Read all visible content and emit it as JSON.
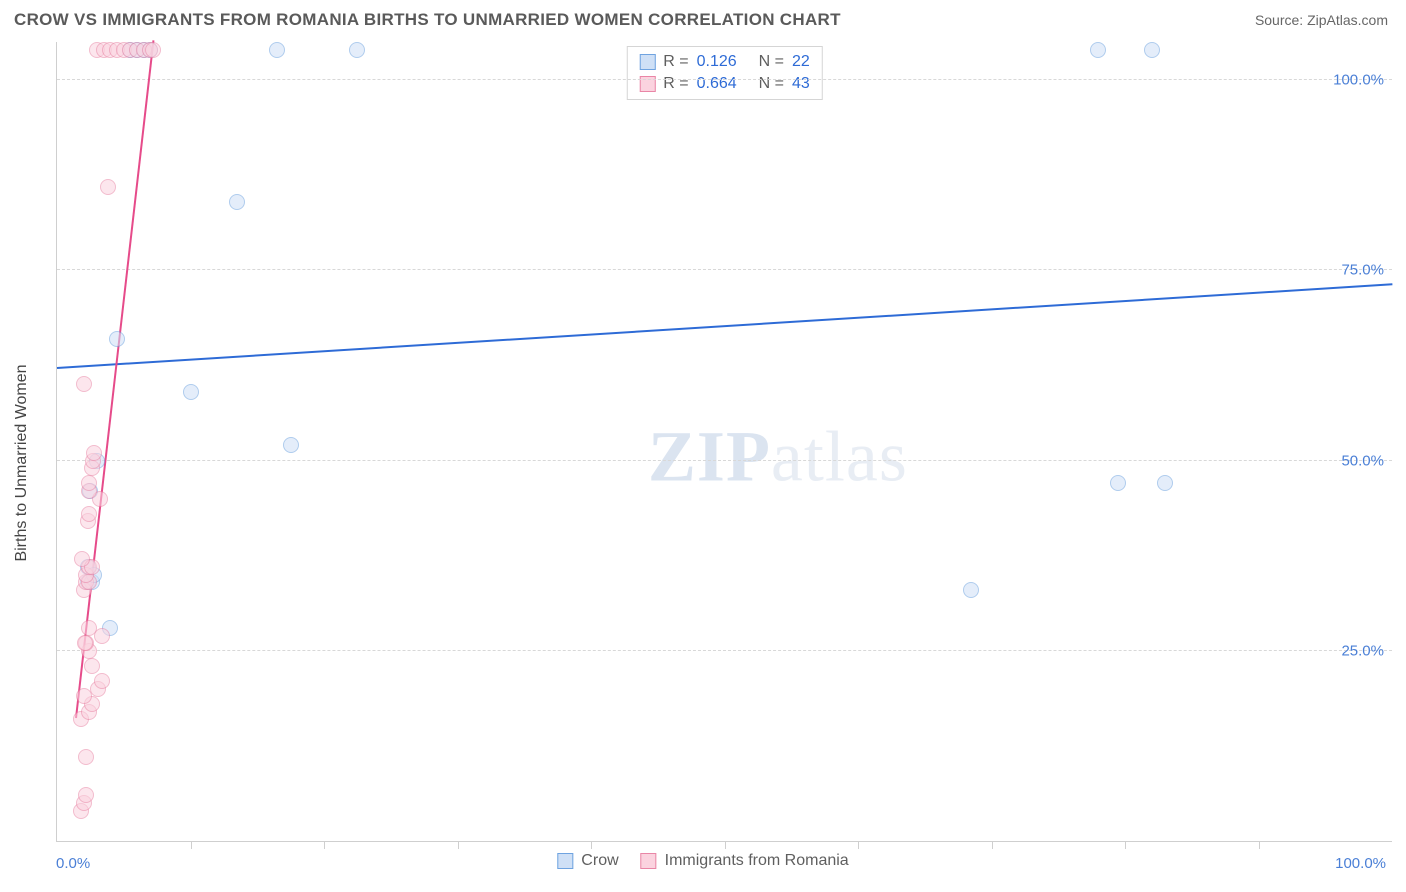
{
  "header": {
    "title": "CROW VS IMMIGRANTS FROM ROMANIA BIRTHS TO UNMARRIED WOMEN CORRELATION CHART",
    "source_prefix": "Source: ",
    "source_name": "ZipAtlas.com"
  },
  "watermark": {
    "left": "ZIP",
    "right": "atlas"
  },
  "chart": {
    "type": "scatter",
    "background_color": "#ffffff",
    "grid_color": "#d8d8d8",
    "axis_color": "#cfcfcf",
    "text_color": "#5a5a5a",
    "tick_label_color": "#4a7fd6",
    "axis_title_color": "#444444",
    "xlim": [
      0,
      100
    ],
    "ylim": [
      0,
      105
    ],
    "y_ticks": [
      25,
      50,
      75,
      100
    ],
    "y_tick_labels": [
      "25.0%",
      "50.0%",
      "75.0%",
      "100.0%"
    ],
    "x_ticks": [
      0,
      10,
      20,
      30,
      40,
      50,
      60,
      70,
      80,
      90,
      100
    ],
    "x_axis_label_left": "0.0%",
    "x_axis_label_right": "100.0%",
    "y_axis_title": "Births to Unmarried Women",
    "marker_radius": 8,
    "marker_border_width": 1.5,
    "series": [
      {
        "name": "Crow",
        "fill": "#cfe0f6",
        "stroke": "#6fa3e0",
        "fill_opacity": 0.55,
        "trend": {
          "x1": 0,
          "y1": 62,
          "x2": 100,
          "y2": 73,
          "color": "#2e6bd6",
          "width": 2
        },
        "R": "0.126",
        "N": "22",
        "points": [
          [
            2.3,
            34
          ],
          [
            2.3,
            36
          ],
          [
            2.5,
            46
          ],
          [
            3.0,
            50
          ],
          [
            4.5,
            66
          ],
          [
            5.5,
            104
          ],
          [
            6.0,
            104
          ],
          [
            6.5,
            104
          ],
          [
            7.0,
            104
          ],
          [
            4.0,
            28
          ],
          [
            10.0,
            59
          ],
          [
            13.5,
            84
          ],
          [
            16.5,
            104
          ],
          [
            17.5,
            52
          ],
          [
            22.5,
            104
          ],
          [
            68.5,
            33
          ],
          [
            78.0,
            104
          ],
          [
            79.5,
            47
          ],
          [
            82.0,
            104
          ],
          [
            83.0,
            47
          ],
          [
            2.6,
            34
          ],
          [
            2.8,
            35
          ]
        ]
      },
      {
        "name": "Immigrants from Romania",
        "fill": "#fbd3df",
        "stroke": "#e986a6",
        "fill_opacity": 0.55,
        "trend": {
          "x1": 1.4,
          "y1": 16,
          "x2": 7.2,
          "y2": 105,
          "color": "#e64b8a",
          "width": 2
        },
        "R": "0.664",
        "N": "43",
        "points": [
          [
            1.8,
            4
          ],
          [
            2.0,
            5
          ],
          [
            2.2,
            6
          ],
          [
            2.2,
            11
          ],
          [
            1.8,
            16
          ],
          [
            2.4,
            17
          ],
          [
            2.6,
            18
          ],
          [
            2.0,
            19
          ],
          [
            3.1,
            20
          ],
          [
            3.4,
            21
          ],
          [
            2.6,
            23
          ],
          [
            2.4,
            25
          ],
          [
            2.2,
            26
          ],
          [
            3.4,
            27
          ],
          [
            2.4,
            28
          ],
          [
            2.0,
            33
          ],
          [
            2.2,
            34
          ],
          [
            2.4,
            34
          ],
          [
            2.2,
            35
          ],
          [
            2.4,
            36
          ],
          [
            2.6,
            36
          ],
          [
            1.9,
            37
          ],
          [
            2.3,
            42
          ],
          [
            2.4,
            43
          ],
          [
            3.2,
            45
          ],
          [
            2.4,
            46
          ],
          [
            2.4,
            47
          ],
          [
            2.6,
            49
          ],
          [
            2.7,
            50
          ],
          [
            2.8,
            51
          ],
          [
            2.0,
            60
          ],
          [
            3.8,
            86
          ],
          [
            3.0,
            104
          ],
          [
            3.5,
            104
          ],
          [
            4.0,
            104
          ],
          [
            4.5,
            104
          ],
          [
            5.0,
            104
          ],
          [
            5.5,
            104
          ],
          [
            6.0,
            104
          ],
          [
            6.5,
            104
          ],
          [
            7.0,
            104
          ],
          [
            7.2,
            104
          ],
          [
            2.1,
            26
          ]
        ]
      }
    ],
    "legend_top": {
      "r_label": "R  =",
      "n_label": "N  ="
    },
    "legend_bottom_labels": [
      "Crow",
      "Immigrants from Romania"
    ]
  }
}
